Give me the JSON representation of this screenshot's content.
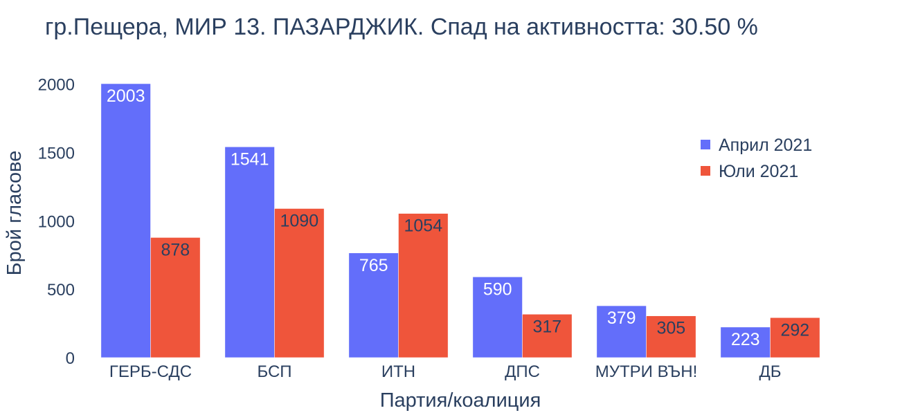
{
  "chart_data": {
    "type": "bar",
    "title": "гр.Пещера, МИР 13. ПАЗАРДЖИК. Спад на активността: 30.50 %",
    "xlabel": "Партия/коалиция",
    "ylabel": "Брой гласове",
    "categories": [
      "ГЕРБ-СДС",
      "БСП",
      "ИТН",
      "ДПС",
      "МУТРИ ВЪН!",
      "ДБ"
    ],
    "series": [
      {
        "name": "Април 2021",
        "color": "#636efa",
        "label_color": "#ffffff",
        "values": [
          2003,
          1541,
          765,
          590,
          379,
          223
        ]
      },
      {
        "name": "Юли 2021",
        "color": "#ef553b",
        "label_color": "#2a3f5f",
        "values": [
          878,
          1090,
          1054,
          317,
          305,
          292
        ]
      }
    ],
    "ylim": [
      0,
      2003
    ],
    "yticks": [
      0,
      500,
      1000,
      1500,
      2000
    ],
    "grid": false,
    "legend_position": "top-right"
  }
}
